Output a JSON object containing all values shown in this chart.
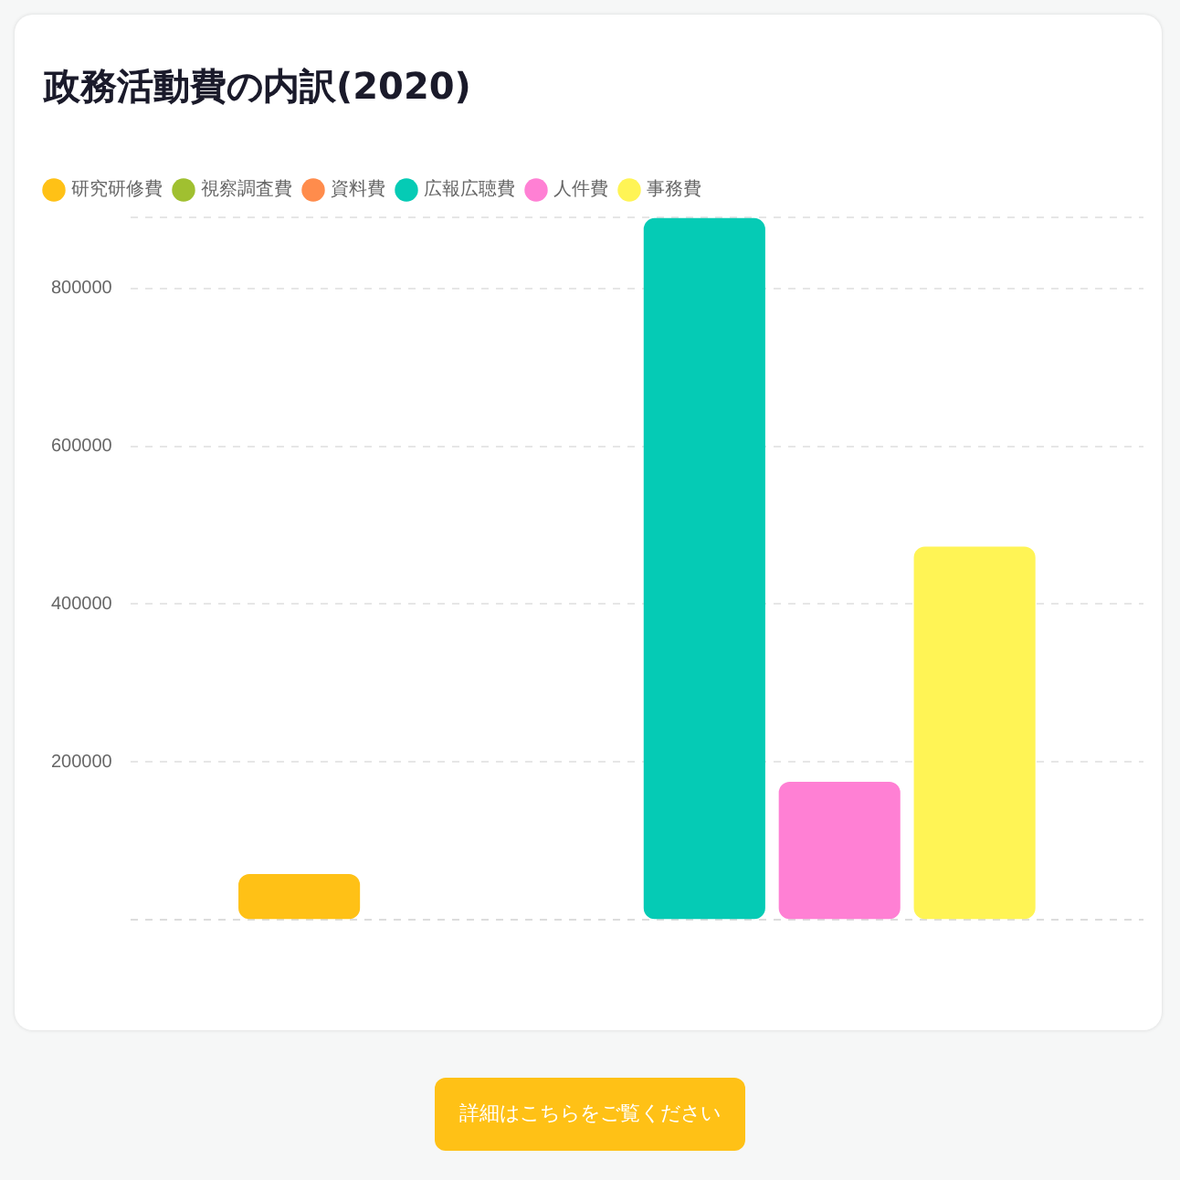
{
  "chart_data": {
    "type": "bar",
    "title": "政務活動費の内訳(2020)",
    "categories": [
      null
    ],
    "series": [
      {
        "name": "研究研修費",
        "color": "#ffc116",
        "values": [
          58000
        ]
      },
      {
        "name": "視察調査費",
        "color": "#a0c030",
        "values": [
          0
        ]
      },
      {
        "name": "資料費",
        "color": "#ff8c4c",
        "values": [
          0
        ]
      },
      {
        "name": "広報広聴費",
        "color": "#05cbb5",
        "values": [
          889000
        ]
      },
      {
        "name": "人件費",
        "color": "#ff80d4",
        "values": [
          175000
        ]
      },
      {
        "name": "事務費",
        "color": "#fff455",
        "values": [
          473000
        ]
      }
    ],
    "ylim": [
      0,
      890000
    ],
    "yticks": [
      {
        "value": 0,
        "label": null
      },
      200000,
      400000,
      600000,
      800000,
      {
        "value": 890000,
        "label": null
      }
    ],
    "grid": "y",
    "legend": "top left",
    "annotations": [
      "詳細はこちらをご覧ください"
    ]
  }
}
